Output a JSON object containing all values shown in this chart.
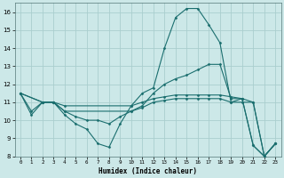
{
  "xlabel": "Humidex (Indice chaleur)",
  "background_color": "#cce8e8",
  "grid_color": "#aacece",
  "line_color": "#1a6e6e",
  "xlim": [
    -0.5,
    23.5
  ],
  "ylim": [
    8,
    16.5
  ],
  "xticks": [
    0,
    1,
    2,
    3,
    4,
    5,
    6,
    7,
    8,
    9,
    10,
    11,
    12,
    13,
    14,
    15,
    16,
    17,
    18,
    19,
    20,
    21,
    22,
    23
  ],
  "yticks": [
    8,
    9,
    10,
    11,
    12,
    13,
    14,
    15,
    16
  ],
  "lines": [
    {
      "x": [
        0,
        1,
        2,
        3,
        4,
        5,
        6,
        7,
        8,
        9,
        10,
        11,
        12,
        13,
        14,
        15,
        16,
        17,
        18,
        19,
        20,
        21,
        22,
        23
      ],
      "y": [
        11.5,
        10.3,
        11.0,
        11.0,
        10.3,
        9.8,
        9.5,
        8.7,
        8.5,
        9.8,
        10.8,
        11.5,
        11.8,
        14.0,
        15.7,
        16.2,
        16.2,
        15.3,
        14.3,
        11.0,
        11.2,
        8.6,
        8.0,
        8.7
      ]
    },
    {
      "x": [
        0,
        1,
        2,
        3,
        4,
        5,
        6,
        7,
        8,
        9,
        10,
        11,
        12,
        13,
        14,
        15,
        16,
        17,
        18,
        19,
        20,
        21,
        22,
        23
      ],
      "y": [
        11.5,
        10.5,
        11.0,
        11.0,
        10.5,
        10.2,
        10.0,
        10.0,
        9.8,
        10.2,
        10.5,
        10.8,
        11.5,
        12.0,
        12.3,
        12.5,
        12.8,
        13.1,
        13.1,
        11.2,
        11.2,
        8.6,
        8.0,
        8.7
      ]
    },
    {
      "x": [
        0,
        2,
        3,
        4,
        10,
        11,
        12,
        13,
        14,
        15,
        16,
        17,
        18,
        19,
        20,
        21,
        22,
        23
      ],
      "y": [
        11.5,
        11.0,
        11.0,
        10.8,
        10.8,
        11.0,
        11.2,
        11.3,
        11.4,
        11.4,
        11.4,
        11.4,
        11.4,
        11.3,
        11.2,
        11.0,
        8.0,
        8.7
      ]
    },
    {
      "x": [
        0,
        2,
        3,
        4,
        10,
        11,
        12,
        13,
        14,
        15,
        16,
        17,
        18,
        19,
        20,
        21,
        22,
        23
      ],
      "y": [
        11.5,
        11.0,
        11.0,
        10.5,
        10.5,
        10.7,
        11.0,
        11.1,
        11.2,
        11.2,
        11.2,
        11.2,
        11.2,
        11.0,
        11.0,
        11.0,
        8.0,
        8.7
      ]
    }
  ]
}
